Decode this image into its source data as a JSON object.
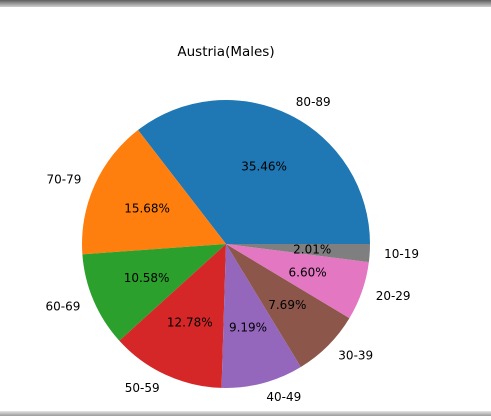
{
  "chart_data": {
    "type": "pie",
    "title": "Austria(Males)",
    "categories": [
      "80-89",
      "70-79",
      "60-69",
      "50-59",
      "40-49",
      "30-39",
      "20-29",
      "10-19"
    ],
    "values": [
      35.46,
      15.68,
      10.58,
      12.78,
      9.19,
      7.69,
      6.6,
      2.01
    ],
    "data_labels": [
      "35.46%",
      "15.68%",
      "10.58%",
      "12.78%",
      "9.19%",
      "7.69%",
      "6.60%",
      "2.01%"
    ],
    "colors": [
      "#1f77b4",
      "#ff7f0e",
      "#2ca02c",
      "#d62728",
      "#9467bd",
      "#8c564b",
      "#e377c2",
      "#7f7f7f"
    ],
    "start_angle_deg": 0,
    "direction": "counterclockwise",
    "legend": "none"
  }
}
